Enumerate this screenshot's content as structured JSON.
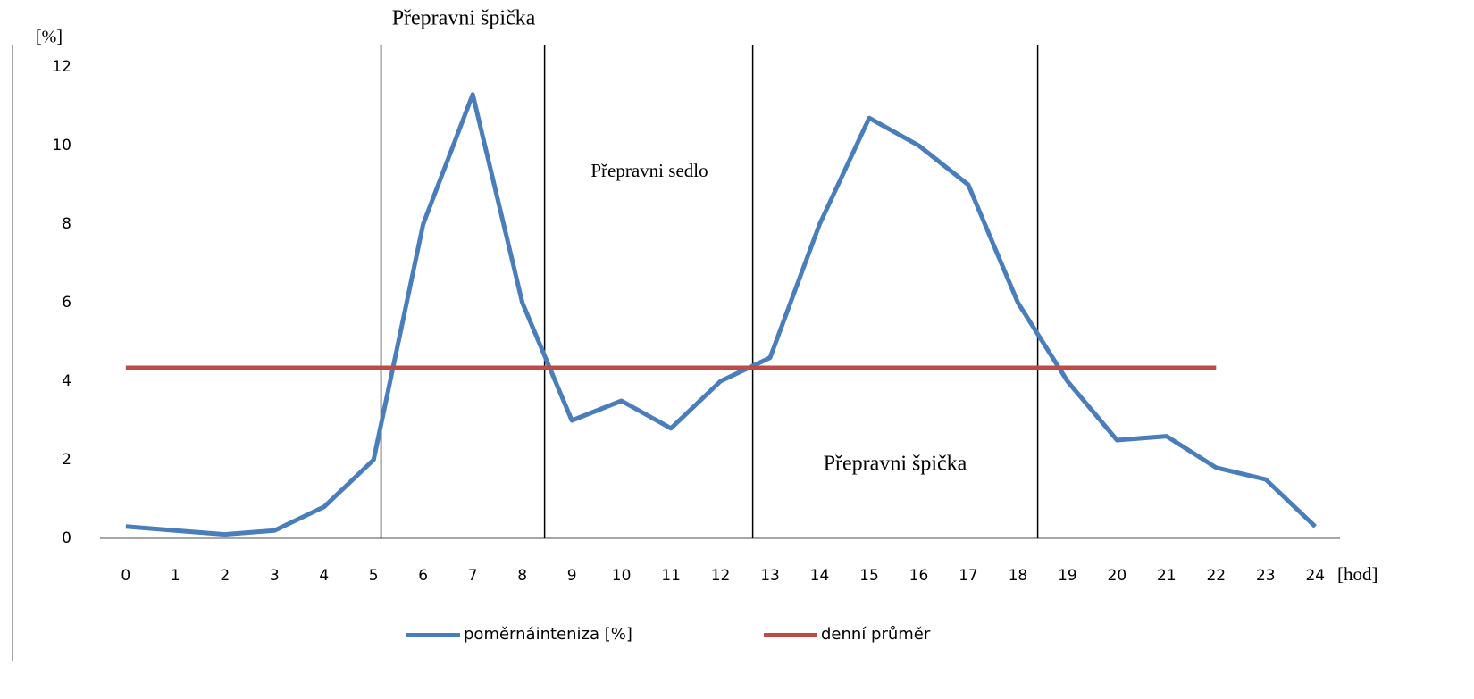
{
  "chart_data": {
    "type": "line",
    "annotations": [
      "Přepravni špička",
      "Přepravni sedlo",
      "Přepravni špička"
    ],
    "ylabel": "[%]",
    "xlabel": "[hod]",
    "x": [
      0,
      1,
      2,
      3,
      4,
      5,
      6,
      7,
      8,
      9,
      10,
      11,
      12,
      13,
      14,
      15,
      16,
      17,
      18,
      19,
      20,
      21,
      22,
      23,
      24
    ],
    "series": [
      {
        "name": "poměrnáinteniza [%]",
        "color": "#4a7ebb",
        "values": [
          0.3,
          0.2,
          0.1,
          0.2,
          0.8,
          2,
          8,
          11.3,
          6,
          3,
          3.5,
          2.8,
          4,
          4.6,
          8,
          10.7,
          10,
          9,
          6,
          4,
          2.5,
          2.6,
          1.8,
          1.5,
          0.3
        ]
      },
      {
        "name": "denní průměr",
        "color": "#be4b48",
        "values": [
          4.34,
          4.34,
          4.34,
          4.34,
          4.34,
          4.34,
          4.34,
          4.34,
          4.34,
          4.34,
          4.34,
          4.34,
          4.34,
          4.34,
          4.34,
          4.34,
          4.34,
          4.34,
          4.34,
          4.34,
          4.34,
          4.34,
          4.34,
          null,
          null
        ]
      }
    ],
    "vlines": [
      5.15,
      8.45,
      12.65,
      18.4
    ],
    "xlim": [
      -0.52,
      24.5
    ],
    "xticks": [
      0,
      1,
      2,
      3,
      4,
      5,
      6,
      7,
      8,
      9,
      10,
      11,
      12,
      13,
      14,
      15,
      16,
      17,
      18,
      19,
      20,
      21,
      22,
      23,
      24
    ],
    "ylim": [
      0,
      12
    ],
    "yticks": [
      0,
      2,
      4,
      6,
      8,
      10,
      12
    ],
    "grid": false
  }
}
